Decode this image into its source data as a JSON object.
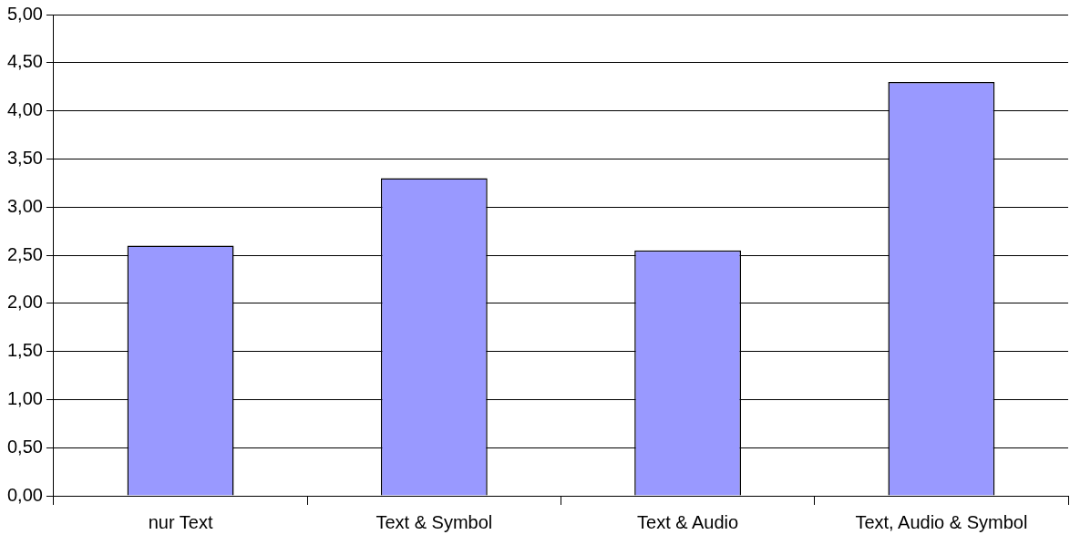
{
  "chart_data": {
    "type": "bar",
    "categories": [
      "nur Text",
      "Text & Symbol",
      "Text & Audio",
      "Text, Audio & Symbol"
    ],
    "values": [
      2.6,
      3.3,
      2.55,
      4.3
    ],
    "color": "#9999ff",
    "ylim": [
      0,
      5
    ],
    "yticks": [
      {
        "value": 0,
        "label": "0,00"
      },
      {
        "value": 0.5,
        "label": "0,50"
      },
      {
        "value": 1,
        "label": "1,00"
      },
      {
        "value": 1.5,
        "label": "1,50"
      },
      {
        "value": 2,
        "label": "2,00"
      },
      {
        "value": 2.5,
        "label": "2,50"
      },
      {
        "value": 3,
        "label": "3,00"
      },
      {
        "value": 3.5,
        "label": "3,50"
      },
      {
        "value": 4,
        "label": "4,00"
      },
      {
        "value": 4.5,
        "label": "4,50"
      },
      {
        "value": 5,
        "label": "5,00"
      }
    ],
    "grid": "y",
    "legend": false
  }
}
